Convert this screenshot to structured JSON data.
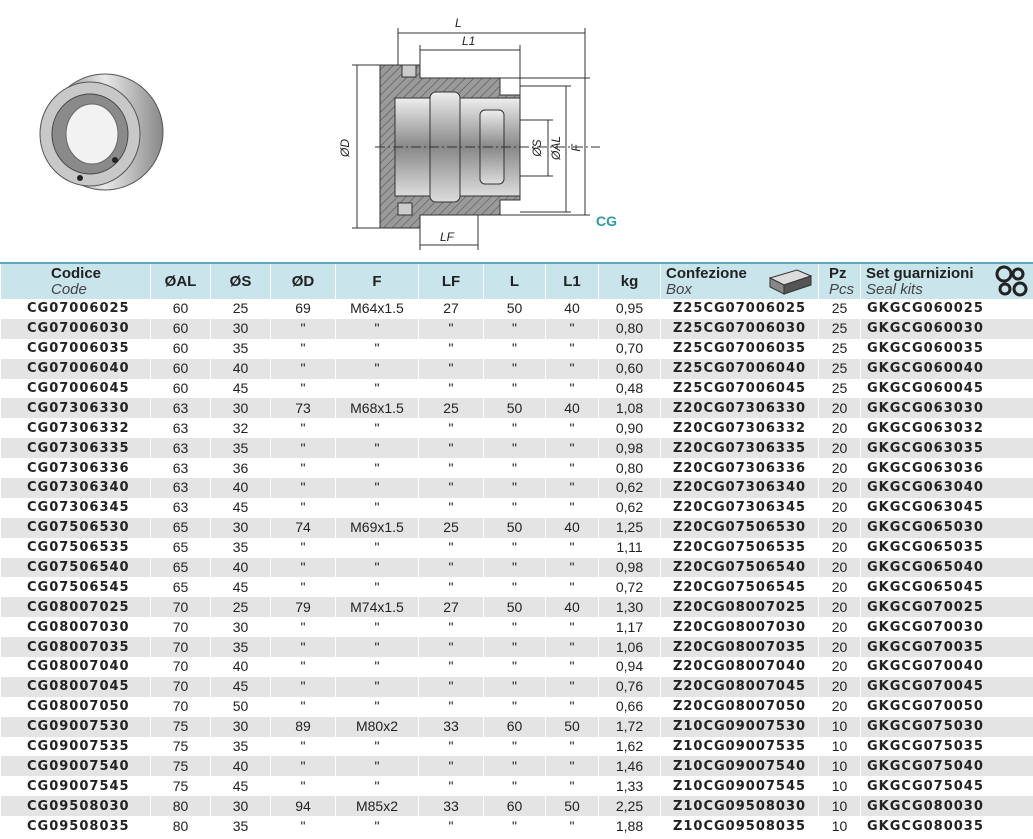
{
  "drawing": {
    "labels": {
      "L": "L",
      "L1": "L1",
      "D": "ØD",
      "S": "ØS",
      "AL": "ØAL",
      "F": "F",
      "LF": "LF",
      "CG": "CG"
    }
  },
  "table": {
    "header": [
      {
        "title": "Codice",
        "subtitle": "Code"
      },
      {
        "title": "ØAL"
      },
      {
        "title": "ØS"
      },
      {
        "title": "ØD"
      },
      {
        "title": "F"
      },
      {
        "title": "LF"
      },
      {
        "title": "L"
      },
      {
        "title": "L1"
      },
      {
        "title": "kg"
      },
      {
        "title": "Confezione",
        "subtitle": "Box"
      },
      {
        "title": "Pz",
        "subtitle": "Pcs"
      },
      {
        "title": "Set guarnizioni",
        "subtitle": "Seal kits"
      }
    ],
    "rows": [
      [
        "CG07006025",
        "60",
        "25",
        "69",
        "M64x1.5",
        "27",
        "50",
        "40",
        "0,95",
        "Z25CG07006025",
        "25",
        "GKGCG060025"
      ],
      [
        "CG07006030",
        "60",
        "30",
        "\"",
        "\"",
        "\"",
        "\"",
        "\"",
        "0,80",
        "Z25CG07006030",
        "25",
        "GKGCG060030"
      ],
      [
        "CG07006035",
        "60",
        "35",
        "\"",
        "\"",
        "\"",
        "\"",
        "\"",
        "0,70",
        "Z25CG07006035",
        "25",
        "GKGCG060035"
      ],
      [
        "CG07006040",
        "60",
        "40",
        "\"",
        "\"",
        "\"",
        "\"",
        "\"",
        "0,60",
        "Z25CG07006040",
        "25",
        "GKGCG060040"
      ],
      [
        "CG07006045",
        "60",
        "45",
        "\"",
        "\"",
        "\"",
        "\"",
        "\"",
        "0,48",
        "Z25CG07006045",
        "25",
        "GKGCG060045"
      ],
      [
        "CG07306330",
        "63",
        "30",
        "73",
        "M68x1.5",
        "25",
        "50",
        "40",
        "1,08",
        "Z20CG07306330",
        "20",
        "GKGCG063030"
      ],
      [
        "CG07306332",
        "63",
        "32",
        "\"",
        "\"",
        "\"",
        "\"",
        "\"",
        "0,90",
        "Z20CG07306332",
        "20",
        "GKGCG063032"
      ],
      [
        "CG07306335",
        "63",
        "35",
        "\"",
        "\"",
        "\"",
        "\"",
        "\"",
        "0,98",
        "Z20CG07306335",
        "20",
        "GKGCG063035"
      ],
      [
        "CG07306336",
        "63",
        "36",
        "\"",
        "\"",
        "\"",
        "\"",
        "\"",
        "0,80",
        "Z20CG07306336",
        "20",
        "GKGCG063036"
      ],
      [
        "CG07306340",
        "63",
        "40",
        "\"",
        "\"",
        "\"",
        "\"",
        "\"",
        "0,62",
        "Z20CG07306340",
        "20",
        "GKGCG063040"
      ],
      [
        "CG07306345",
        "63",
        "45",
        "\"",
        "\"",
        "\"",
        "\"",
        "\"",
        "0,62",
        "Z20CG07306345",
        "20",
        "GKGCG063045"
      ],
      [
        "CG07506530",
        "65",
        "30",
        "74",
        "M69x1.5",
        "25",
        "50",
        "40",
        "1,25",
        "Z20CG07506530",
        "20",
        "GKGCG065030"
      ],
      [
        "CG07506535",
        "65",
        "35",
        "\"",
        "\"",
        "\"",
        "\"",
        "\"",
        "1,11",
        "Z20CG07506535",
        "20",
        "GKGCG065035"
      ],
      [
        "CG07506540",
        "65",
        "40",
        "\"",
        "\"",
        "\"",
        "\"",
        "\"",
        "0,98",
        "Z20CG07506540",
        "20",
        "GKGCG065040"
      ],
      [
        "CG07506545",
        "65",
        "45",
        "\"",
        "\"",
        "\"",
        "\"",
        "\"",
        "0,72",
        "Z20CG07506545",
        "20",
        "GKGCG065045"
      ],
      [
        "CG08007025",
        "70",
        "25",
        "79",
        "M74x1.5",
        "27",
        "50",
        "40",
        "1,30",
        "Z20CG08007025",
        "20",
        "GKGCG070025"
      ],
      [
        "CG08007030",
        "70",
        "30",
        "\"",
        "\"",
        "\"",
        "\"",
        "\"",
        "1,17",
        "Z20CG08007030",
        "20",
        "GKGCG070030"
      ],
      [
        "CG08007035",
        "70",
        "35",
        "\"",
        "\"",
        "\"",
        "\"",
        "\"",
        "1,06",
        "Z20CG08007035",
        "20",
        "GKGCG070035"
      ],
      [
        "CG08007040",
        "70",
        "40",
        "\"",
        "\"",
        "\"",
        "\"",
        "\"",
        "0,94",
        "Z20CG08007040",
        "20",
        "GKGCG070040"
      ],
      [
        "CG08007045",
        "70",
        "45",
        "\"",
        "\"",
        "\"",
        "\"",
        "\"",
        "0,76",
        "Z20CG08007045",
        "20",
        "GKGCG070045"
      ],
      [
        "CG08007050",
        "70",
        "50",
        "\"",
        "\"",
        "\"",
        "\"",
        "\"",
        "0,66",
        "Z20CG08007050",
        "20",
        "GKGCG070050"
      ],
      [
        "CG09007530",
        "75",
        "30",
        "89",
        "M80x2",
        "33",
        "60",
        "50",
        "1,72",
        "Z10CG09007530",
        "10",
        "GKGCG075030"
      ],
      [
        "CG09007535",
        "75",
        "35",
        "\"",
        "\"",
        "\"",
        "\"",
        "\"",
        "1,62",
        "Z10CG09007535",
        "10",
        "GKGCG075035"
      ],
      [
        "CG09007540",
        "75",
        "40",
        "\"",
        "\"",
        "\"",
        "\"",
        "\"",
        "1,46",
        "Z10CG09007540",
        "10",
        "GKGCG075040"
      ],
      [
        "CG09007545",
        "75",
        "45",
        "\"",
        "\"",
        "\"",
        "\"",
        "\"",
        "1,33",
        "Z10CG09007545",
        "10",
        "GKGCG075045"
      ],
      [
        "CG09508030",
        "80",
        "30",
        "94",
        "M85x2",
        "33",
        "60",
        "50",
        "2,25",
        "Z10CG09508030",
        "10",
        "GKGCG080030"
      ],
      [
        "CG09508035",
        "80",
        "35",
        "\"",
        "\"",
        "\"",
        "\"",
        "\"",
        "1,88",
        "Z10CG09508035",
        "10",
        "GKGCG080035"
      ]
    ]
  }
}
